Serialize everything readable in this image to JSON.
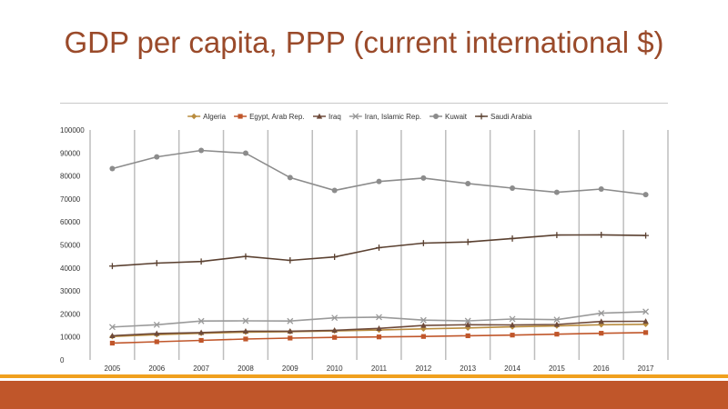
{
  "slide": {
    "title": "GDP per capita, PPP (current international $)"
  },
  "colors": {
    "title": "#9a4a2a",
    "footer_accent": "#f0a01e",
    "footer": "#c0562a"
  },
  "chart_data": {
    "type": "line",
    "title": "GDP per capita, PPP (current international $)",
    "xlabel": "",
    "ylabel": "",
    "x": [
      "2005",
      "2006",
      "2007",
      "2008",
      "2009",
      "2010",
      "2011",
      "2012",
      "2013",
      "2014",
      "2015",
      "2016",
      "2017"
    ],
    "ylim": [
      0,
      100000
    ],
    "yticks": [
      "0",
      "10000",
      "20000",
      "30000",
      "40000",
      "50000",
      "60000",
      "70000",
      "80000",
      "90000",
      "100000"
    ],
    "grid": "vertical",
    "legend": "top",
    "series": [
      {
        "name": "Algeria",
        "color": "#b98c3e",
        "marker": "diamond",
        "values": [
          10200,
          11000,
          11600,
          12100,
          12300,
          12600,
          13000,
          13500,
          13900,
          14400,
          14800,
          15300,
          15500
        ]
      },
      {
        "name": "Egypt, Arab Rep.",
        "color": "#c0562a",
        "marker": "square",
        "values": [
          7300,
          7900,
          8500,
          9100,
          9500,
          9800,
          10000,
          10200,
          10500,
          10800,
          11200,
          11600,
          11900
        ]
      },
      {
        "name": "Iraq",
        "color": "#6e4a3a",
        "marker": "triangle",
        "values": [
          10500,
          11500,
          11900,
          12500,
          12500,
          12900,
          13700,
          15000,
          15300,
          15200,
          15400,
          16700,
          16800
        ]
      },
      {
        "name": "Iran, Islamic Rep.",
        "color": "#9a9a9a",
        "marker": "x",
        "values": [
          14300,
          15300,
          16900,
          17000,
          16900,
          18300,
          18600,
          17300,
          17000,
          17800,
          17500,
          20300,
          21000
        ]
      },
      {
        "name": "Kuwait",
        "color": "#8c8c8c",
        "marker": "circle",
        "values": [
          83200,
          88300,
          91100,
          89900,
          79300,
          73700,
          77600,
          79100,
          76700,
          74700,
          72900,
          74300,
          71900
        ]
      },
      {
        "name": "Saudi Arabia",
        "color": "#5a4030",
        "marker": "plus",
        "values": [
          40800,
          42100,
          42800,
          45000,
          43300,
          44800,
          48800,
          50800,
          51300,
          52800,
          54300,
          54400,
          54100
        ]
      }
    ]
  }
}
